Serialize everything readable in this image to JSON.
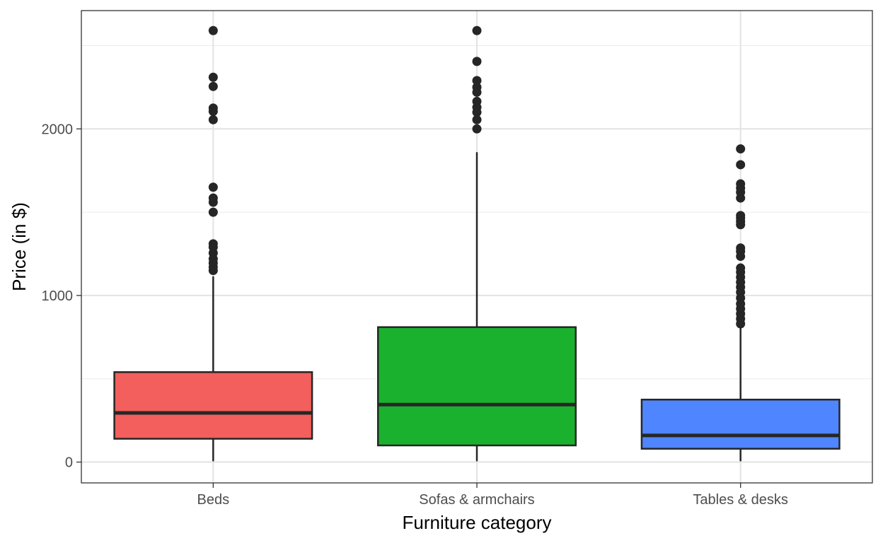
{
  "chart_data": {
    "type": "box",
    "title": "",
    "xlabel": "Furniture category",
    "ylabel": "Price (in $)",
    "ylim": [
      -125,
      2710
    ],
    "yticks": [
      0,
      1000,
      2000
    ],
    "ytick_labels": [
      "0",
      "1000",
      "2000"
    ],
    "grid": true,
    "categories": [
      "Beds",
      "Sofas & armchairs",
      "Tables & desks"
    ],
    "boxes": [
      {
        "category": "Beds",
        "color": "#F25F5C",
        "min": 5,
        "q1": 140,
        "median": 295,
        "q3": 540,
        "max": 1115,
        "outliers": [
          1150,
          1170,
          1195,
          1220,
          1255,
          1290,
          1310,
          1500,
          1560,
          1585,
          1650,
          2055,
          2105,
          2125,
          2255,
          2310,
          2590
        ]
      },
      {
        "category": "Sofas & armchairs",
        "color": "#1AB12E",
        "min": 5,
        "q1": 100,
        "median": 345,
        "q3": 810,
        "max": 1860,
        "outliers": [
          2000,
          2055,
          2100,
          2130,
          2165,
          2220,
          2250,
          2290,
          2405,
          2590
        ]
      },
      {
        "category": "Tables & desks",
        "color": "#4F86FF",
        "min": 5,
        "q1": 80,
        "median": 160,
        "q3": 375,
        "max": 815,
        "outliers": [
          830,
          860,
          890,
          920,
          950,
          985,
          1020,
          1050,
          1080,
          1110,
          1140,
          1165,
          1235,
          1265,
          1285,
          1425,
          1445,
          1465,
          1480,
          1585,
          1620,
          1645,
          1670,
          1785,
          1880
        ]
      }
    ]
  }
}
